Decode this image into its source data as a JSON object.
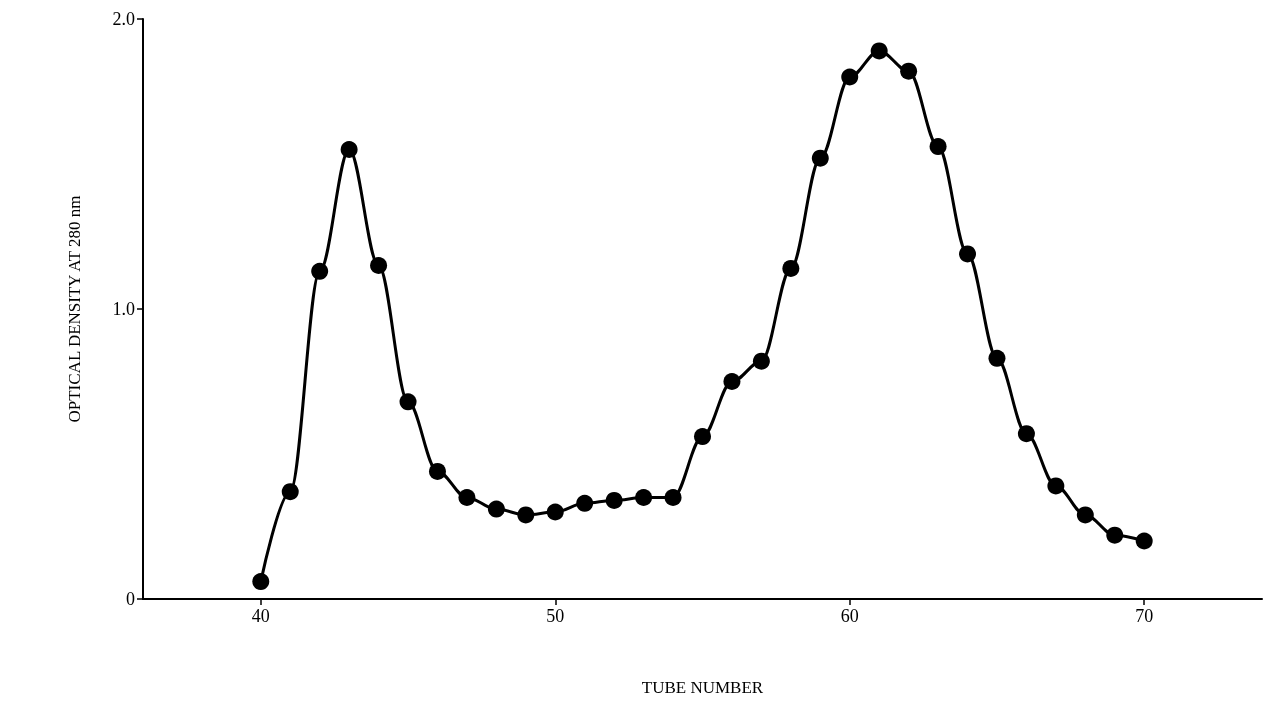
{
  "chart_data": {
    "type": "line",
    "xlabel": "TUBE NUMBER",
    "ylabel": "OPTICAL DENSITY AT 280 nm",
    "x": [
      40,
      41,
      42,
      43,
      44,
      45,
      46,
      47,
      48,
      49,
      50,
      51,
      52,
      53,
      54,
      55,
      56,
      57,
      58,
      59,
      60,
      61,
      62,
      63,
      64,
      65,
      66,
      67,
      68,
      69,
      70
    ],
    "series": [
      {
        "color": "#000000",
        "values": [
          0.06,
          0.37,
          1.13,
          1.55,
          1.15,
          0.68,
          0.44,
          0.35,
          0.31,
          0.29,
          0.3,
          0.33,
          0.34,
          0.35,
          0.35,
          0.56,
          0.75,
          0.82,
          1.14,
          1.52,
          1.8,
          1.89,
          1.82,
          1.56,
          1.19,
          0.83,
          0.57,
          0.39,
          0.29,
          0.22,
          0.2
        ]
      }
    ],
    "xlim": [
      36,
      74
    ],
    "xticks": [
      40,
      50,
      60,
      70
    ],
    "ylim": [
      0,
      2
    ],
    "yticks": [
      0,
      {
        "value": 1,
        "label": "1.0"
      },
      {
        "value": 2,
        "label": "2.0"
      }
    ],
    "grid": false,
    "marker": "circle",
    "line_style": "solid"
  }
}
